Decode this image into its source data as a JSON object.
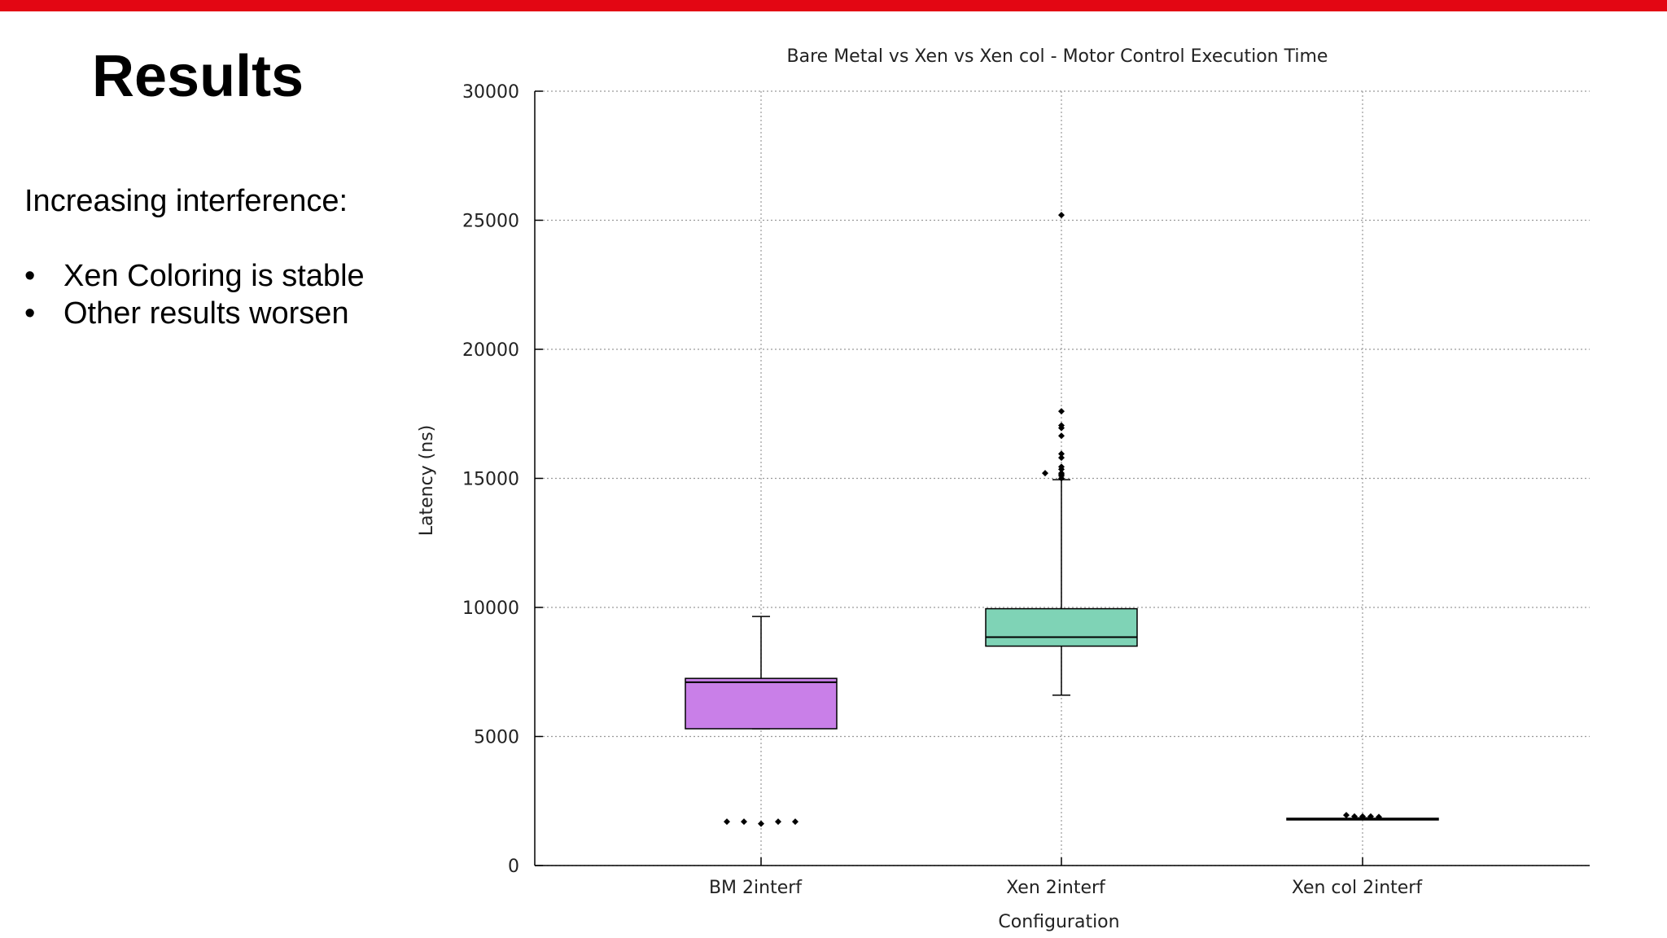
{
  "slide": {
    "title": "Results",
    "intro": "Increasing interference:",
    "bullets": [
      "Xen Coloring is stable",
      "Other results worsen"
    ],
    "bullet_glyph": "•",
    "accent_color": "#e30613"
  },
  "chart_data": {
    "type": "box",
    "title": "Bare Metal vs Xen vs Xen col - Motor Control Execution Time",
    "xlabel": "Configuration",
    "ylabel": "Latency (ns)",
    "ylim": [
      0,
      30000
    ],
    "yticks": [
      0,
      5000,
      10000,
      15000,
      20000,
      25000,
      30000
    ],
    "grid": true,
    "categories": [
      "BM 2interf",
      "Xen 2interf",
      "Xen col 2interf"
    ],
    "boxes": [
      {
        "label": "BM 2interf",
        "whisker_low": 5300,
        "q1": 5300,
        "median": 7100,
        "q3": 7250,
        "whisker_high": 9650,
        "color": "#c97fe8",
        "outliers": [
          1700,
          1700,
          1620,
          1700,
          1700
        ]
      },
      {
        "label": "Xen 2interf",
        "whisker_low": 6600,
        "q1": 8500,
        "median": 8850,
        "q3": 9950,
        "whisker_high": 14950,
        "color": "#7fd3b6",
        "outliers": [
          25200,
          17600,
          17050,
          16950,
          16650,
          15950,
          15800,
          15450,
          15350,
          15200,
          15150,
          15100,
          15000,
          15200
        ]
      },
      {
        "label": "Xen col 2interf",
        "whisker_low": 1800,
        "q1": 1800,
        "median": 1810,
        "q3": 1830,
        "whisker_high": 1850,
        "color": "#9ad9ea",
        "outliers": [
          1950,
          1900,
          1900,
          1900,
          1880
        ]
      }
    ]
  }
}
